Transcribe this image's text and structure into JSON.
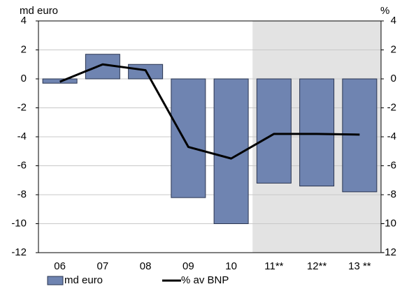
{
  "chart_data": {
    "type": "bar",
    "y_label": "md euro",
    "y2_label": "%",
    "categories": [
      "06",
      "07",
      "08",
      "09",
      "10",
      "11**",
      "12**",
      "13 **"
    ],
    "series": [
      {
        "name": "md euro",
        "type": "bar",
        "color": "#6f84b1",
        "values": [
          -0.3,
          1.7,
          1.0,
          -8.2,
          -10.0,
          -7.2,
          -7.4,
          -7.8
        ]
      },
      {
        "name": "% av BNP",
        "type": "line",
        "axis": "y2",
        "color": "#000000",
        "values": [
          -0.2,
          1.0,
          0.6,
          -4.7,
          -5.5,
          -3.8,
          -3.8,
          -3.85
        ]
      }
    ],
    "ylim": [
      -12,
      4
    ],
    "yticks": [
      -12,
      -10,
      -8,
      -6,
      -4,
      -2,
      0,
      2,
      4
    ],
    "y2lim": [
      -12,
      4
    ],
    "y2ticks": [
      -12,
      -10,
      -8,
      -6,
      -4,
      -2,
      0,
      2,
      4
    ],
    "grid": true,
    "legend": "bottom"
  }
}
